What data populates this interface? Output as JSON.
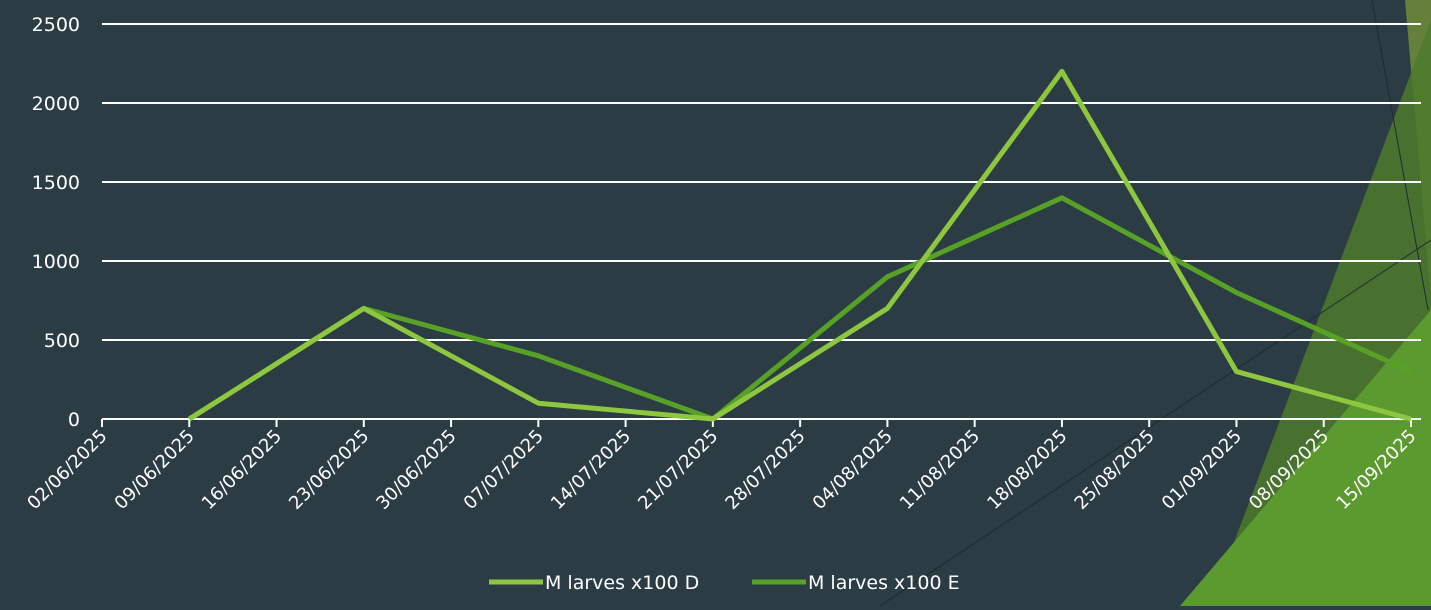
{
  "chart_data": {
    "type": "line",
    "title": "",
    "xlabel": "",
    "ylabel": "",
    "ylim": [
      0,
      2500
    ],
    "y_ticks": [
      "0",
      "500",
      "1000",
      "1500",
      "2000",
      "2500"
    ],
    "categories": [
      "02/06/2025",
      "09/06/2025",
      "16/06/2025",
      "23/06/2025",
      "30/06/2025",
      "07/07/2025",
      "14/07/2025",
      "21/07/2025",
      "28/07/2025",
      "04/08/2025",
      "11/08/2025",
      "18/08/2025",
      "25/08/2025",
      "01/09/2025",
      "08/09/2025",
      "15/09/2025"
    ],
    "series": [
      {
        "name": "M larves x100 D",
        "color": "#8dc63f",
        "values": [
          null,
          0,
          null,
          700,
          null,
          100,
          null,
          0,
          null,
          700,
          null,
          2200,
          null,
          300,
          null,
          0
        ]
      },
      {
        "name": "M larves x100 E",
        "color": "#57a126",
        "values": [
          null,
          0,
          null,
          700,
          null,
          400,
          null,
          0,
          null,
          900,
          null,
          1400,
          null,
          800,
          null,
          300
        ]
      }
    ],
    "grid": true,
    "legend": "bottom",
    "background": "#2b3c45",
    "decoration_colors": [
      "#4d7a2c",
      "#5b9a2f",
      "#6f8c3a"
    ]
  }
}
